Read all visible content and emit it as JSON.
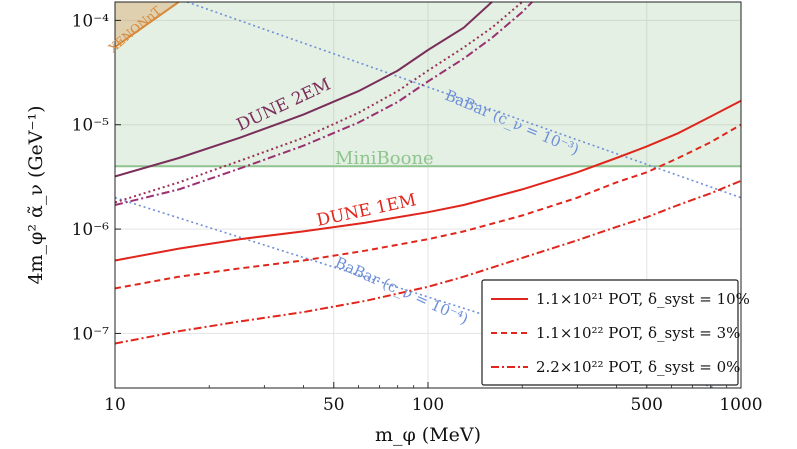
{
  "chart_data": {
    "type": "line",
    "xscale": "log",
    "yscale": "log",
    "xlim": [
      10,
      1000
    ],
    "ylim": [
      3e-08,
      0.00015
    ],
    "grid": true,
    "legend_position": "bottom-right",
    "xlabel": "m_φ (MeV)",
    "ylabel": "4m_φ² α̃_ν (GeV⁻¹)",
    "x_ticks": [
      {
        "value": 10,
        "label": "10"
      },
      {
        "value": 50,
        "label": "50"
      },
      {
        "value": 100,
        "label": "100"
      },
      {
        "value": 500,
        "label": "500"
      },
      {
        "value": 1000,
        "label": "1000"
      }
    ],
    "y_ticks": [
      {
        "value": 1e-07,
        "label": "10⁻⁷"
      },
      {
        "value": 1e-06,
        "label": "10⁻⁶"
      },
      {
        "value": 1e-05,
        "label": "10⁻⁵"
      },
      {
        "value": 0.0001,
        "label": "10⁻⁴"
      }
    ],
    "regions": [
      {
        "name": "XENONnT",
        "color": "#d8893a",
        "x": [
          10,
          13
        ],
        "y": [
          0.00012,
          0.00015
        ]
      },
      {
        "name": "MiniBoone",
        "color": "#8fc48f",
        "y_lower": 4e-06
      }
    ],
    "reference_lines": [
      {
        "name": "BaBar (c_ν = 10⁻³)",
        "color": "#6f8fd8",
        "x": [
          17,
          1000
        ],
        "y": [
          0.00015,
          2e-06
        ]
      },
      {
        "name": "BaBar (c_ν = 10⁻⁴)",
        "color": "#6f8fd8",
        "x": [
          10,
          1000
        ],
        "y": [
          2e-06,
          2.5e-08
        ]
      }
    ],
    "series": [
      {
        "name": "DUNE 2EM",
        "color": "#7a2e5a",
        "style": "solid",
        "x": [
          10,
          16,
          25,
          40,
          60,
          80,
          100,
          130,
          160
        ],
        "y": [
          3.2e-06,
          4.8e-06,
          7.5e-06,
          1.25e-05,
          2.1e-05,
          3.3e-05,
          5.2e-05,
          8.5e-05,
          0.00015
        ]
      },
      {
        "name": "DUNE 2EM 1.1×10²² POT",
        "color": "#9a3058",
        "style": "dotted",
        "x": [
          10,
          16,
          25,
          40,
          60,
          80,
          100,
          130,
          160,
          200
        ],
        "y": [
          1.8e-06,
          2.8e-06,
          4.5e-06,
          7.5e-06,
          1.3e-05,
          2.1e-05,
          3.3e-05,
          5.5e-05,
          8.5e-05,
          0.00015
        ]
      },
      {
        "name": "DUNE 2EM 2.2×10²² POT",
        "color": "#9a3070",
        "style": "dashdot",
        "x": [
          10,
          16,
          25,
          40,
          60,
          80,
          100,
          130,
          160,
          200,
          215
        ],
        "y": [
          1.7e-06,
          2.4e-06,
          3.8e-06,
          6.3e-06,
          1.05e-05,
          1.65e-05,
          2.6e-05,
          4.3e-05,
          6.8e-05,
          0.00012,
          0.00015
        ]
      },
      {
        "name": "1.1×10²¹ POT, δ_syst = 10%",
        "color": "#e0261c",
        "style": "solid",
        "x": [
          10,
          16,
          25,
          40,
          63,
          100,
          130,
          200,
          300,
          400,
          500,
          630,
          800,
          1000
        ],
        "y": [
          5e-07,
          6.5e-07,
          8e-07,
          9.5e-07,
          1.15e-06,
          1.45e-06,
          1.7e-06,
          2.4e-06,
          3.5e-06,
          4.8e-06,
          6.2e-06,
          8.3e-06,
          1.2e-05,
          1.7e-05
        ]
      },
      {
        "name": "1.1×10²² POT, δ_syst = 3%",
        "color": "#e0261c",
        "style": "dashed",
        "x": [
          10,
          16,
          25,
          40,
          63,
          100,
          130,
          200,
          300,
          400,
          500,
          630,
          800,
          1000
        ],
        "y": [
          2.7e-07,
          3.5e-07,
          4.2e-07,
          5e-07,
          6.2e-07,
          8e-07,
          9.5e-07,
          1.35e-06,
          2e-06,
          2.8e-06,
          3.5e-06,
          4.8e-06,
          6.8e-06,
          1e-05
        ]
      },
      {
        "name": "2.2×10²² POT, δ_syst = 0%",
        "color": "#e0261c",
        "style": "dashdot",
        "x": [
          10,
          16,
          25,
          40,
          63,
          100,
          130,
          200,
          300,
          400,
          500,
          630,
          800,
          1000
        ],
        "y": [
          8e-08,
          1.05e-07,
          1.3e-07,
          1.6e-07,
          2.05e-07,
          2.8e-07,
          3.5e-07,
          5.3e-07,
          7.8e-07,
          1.05e-06,
          1.3e-06,
          1.7e-06,
          2.2e-06,
          2.9e-06
        ]
      }
    ],
    "annotations": [
      {
        "text": "XENONnT",
        "color": "#d8893a"
      },
      {
        "text": "DUNE 2EM",
        "color": "#7a2e5a"
      },
      {
        "text": "BaBar (c_ν = 10⁻³)",
        "color": "#6f8fd8"
      },
      {
        "text": "MiniBoone",
        "color": "#8fc48f"
      },
      {
        "text": "DUNE 1EM",
        "color": "#e0261c"
      },
      {
        "text": "BaBar (c_ν = 10⁻⁴)",
        "color": "#6f8fd8"
      }
    ],
    "legend": [
      {
        "text": "1.1×10²¹ POT, δ_syst = 10%",
        "color": "#e0261c",
        "style": "solid"
      },
      {
        "text": "1.1×10²² POT, δ_syst = 3%",
        "color": "#e0261c",
        "style": "dashed"
      },
      {
        "text": "2.2×10²² POT, δ_syst = 0%",
        "color": "#e0261c",
        "style": "dashdot"
      }
    ]
  }
}
